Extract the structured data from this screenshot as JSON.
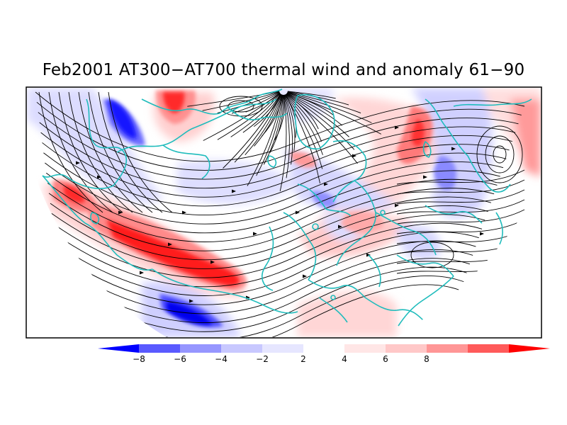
{
  "title": "Feb2001 AT300−AT700 thermal wind and anomaly 61−90",
  "colorbar": {
    "labels": [
      "−8",
      "−6",
      "−4",
      "−2",
      "2",
      "4",
      "6",
      "8"
    ],
    "colors": [
      "#0000ff",
      "#5a5aff",
      "#9696ff",
      "#c8c8ff",
      "#e6e6ff",
      "#ffffff",
      "#ffe6e6",
      "#ffc8c8",
      "#ff9696",
      "#ff5a5a",
      "#ff0000"
    ]
  },
  "colors": {
    "coastline": "#1fbcbc",
    "streamline": "#000000",
    "frame": "#000000",
    "positive_anomaly": "#ff2020",
    "negative_anomaly": "#2020ff"
  }
}
